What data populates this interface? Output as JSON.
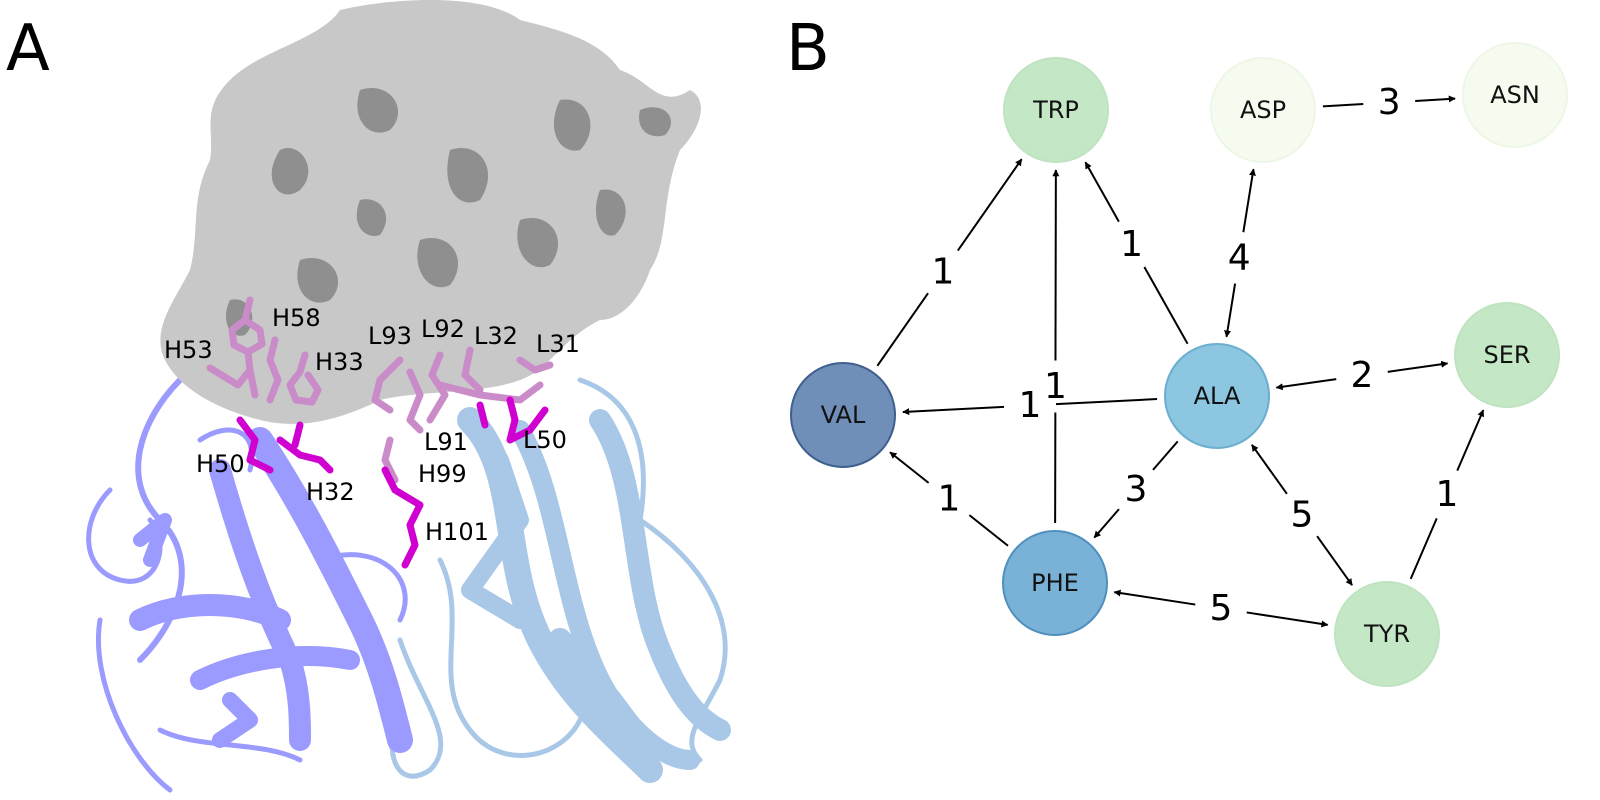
{
  "panels": {
    "a": {
      "letter": "A",
      "residues": [
        "H53",
        "H58",
        "H33",
        "L93",
        "L92",
        "L32",
        "L31",
        "H50",
        "L91",
        "L50",
        "H32",
        "H99",
        "H101"
      ],
      "colors": {
        "surface": "#c8c8c8",
        "surface_shadow": "#8f8f8f",
        "heavy_chain": "#9a9aff",
        "light_chain": "#a9c8e8",
        "sticks_light": "#c98cc9",
        "sticks_dark": "#d000d0"
      }
    },
    "b": {
      "letter": "B",
      "nodes": [
        {
          "id": "TRP",
          "label": "TRP",
          "color": "#c4e8c6",
          "stroke": "#bfe3c1"
        },
        {
          "id": "ASP",
          "label": "ASP",
          "color": "#f6fbf0",
          "stroke": "#eef6e6"
        },
        {
          "id": "ASN",
          "label": "ASN",
          "color": "#f6fbf0",
          "stroke": "#eef6e6"
        },
        {
          "id": "VAL",
          "label": "VAL",
          "color": "#6f8fb8",
          "stroke": "#3f5f8f"
        },
        {
          "id": "ALA",
          "label": "ALA",
          "color": "#8cc6e0",
          "stroke": "#6aaed0"
        },
        {
          "id": "SER",
          "label": "SER",
          "color": "#c4e8c6",
          "stroke": "#bfe3c1"
        },
        {
          "id": "PHE",
          "label": "PHE",
          "color": "#79b2d6",
          "stroke": "#4f90be"
        },
        {
          "id": "TYR",
          "label": "TYR",
          "color": "#c4e8c6",
          "stroke": "#bfe3c1"
        }
      ],
      "edges": [
        {
          "from": "VAL",
          "to": "TRP",
          "weight": "1",
          "bidirectional": false
        },
        {
          "from": "PHE",
          "to": "TRP",
          "weight": "1",
          "bidirectional": false
        },
        {
          "from": "ALA",
          "to": "TRP",
          "weight": "1",
          "bidirectional": false
        },
        {
          "from": "ASP",
          "to": "ASN",
          "weight": "3",
          "bidirectional": false
        },
        {
          "from": "ALA",
          "to": "ASP",
          "weight": "4",
          "bidirectional": true
        },
        {
          "from": "ALA",
          "to": "VAL",
          "weight": "1",
          "bidirectional": false
        },
        {
          "from": "ALA",
          "to": "SER",
          "weight": "2",
          "bidirectional": true
        },
        {
          "from": "ALA",
          "to": "PHE",
          "weight": "3",
          "bidirectional": false
        },
        {
          "from": "PHE",
          "to": "VAL",
          "weight": "1",
          "bidirectional": false
        },
        {
          "from": "ALA",
          "to": "TYR",
          "weight": "5",
          "bidirectional": true
        },
        {
          "from": "PHE",
          "to": "TYR",
          "weight": "5",
          "bidirectional": true
        },
        {
          "from": "TYR",
          "to": "SER",
          "weight": "1",
          "bidirectional": false
        }
      ]
    }
  }
}
